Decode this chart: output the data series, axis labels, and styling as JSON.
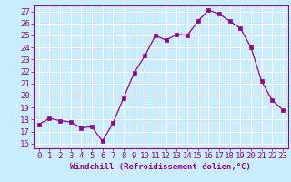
{
  "x": [
    0,
    1,
    2,
    3,
    4,
    5,
    6,
    7,
    8,
    9,
    10,
    11,
    12,
    13,
    14,
    15,
    16,
    17,
    18,
    19,
    20,
    21,
    22,
    23
  ],
  "y": [
    17.6,
    18.1,
    17.9,
    17.8,
    17.3,
    17.4,
    16.2,
    17.7,
    19.8,
    21.9,
    23.3,
    25.0,
    24.6,
    25.1,
    25.0,
    26.2,
    27.1,
    26.8,
    26.2,
    25.6,
    24.0,
    21.2,
    19.6,
    18.8
  ],
  "line_color": "#990099",
  "marker_color": "#990099",
  "bg_color": "#c8eeff",
  "grid_color": "#ffffff",
  "xlabel": "Windchill (Refroidissement éolien,°C)",
  "ylabel_ticks": [
    16,
    17,
    18,
    19,
    20,
    21,
    22,
    23,
    24,
    25,
    26,
    27
  ],
  "ylim": [
    15.6,
    27.5
  ],
  "xlim": [
    -0.5,
    23.5
  ],
  "xlabel_fontsize": 6.5,
  "tick_fontsize": 6.5
}
